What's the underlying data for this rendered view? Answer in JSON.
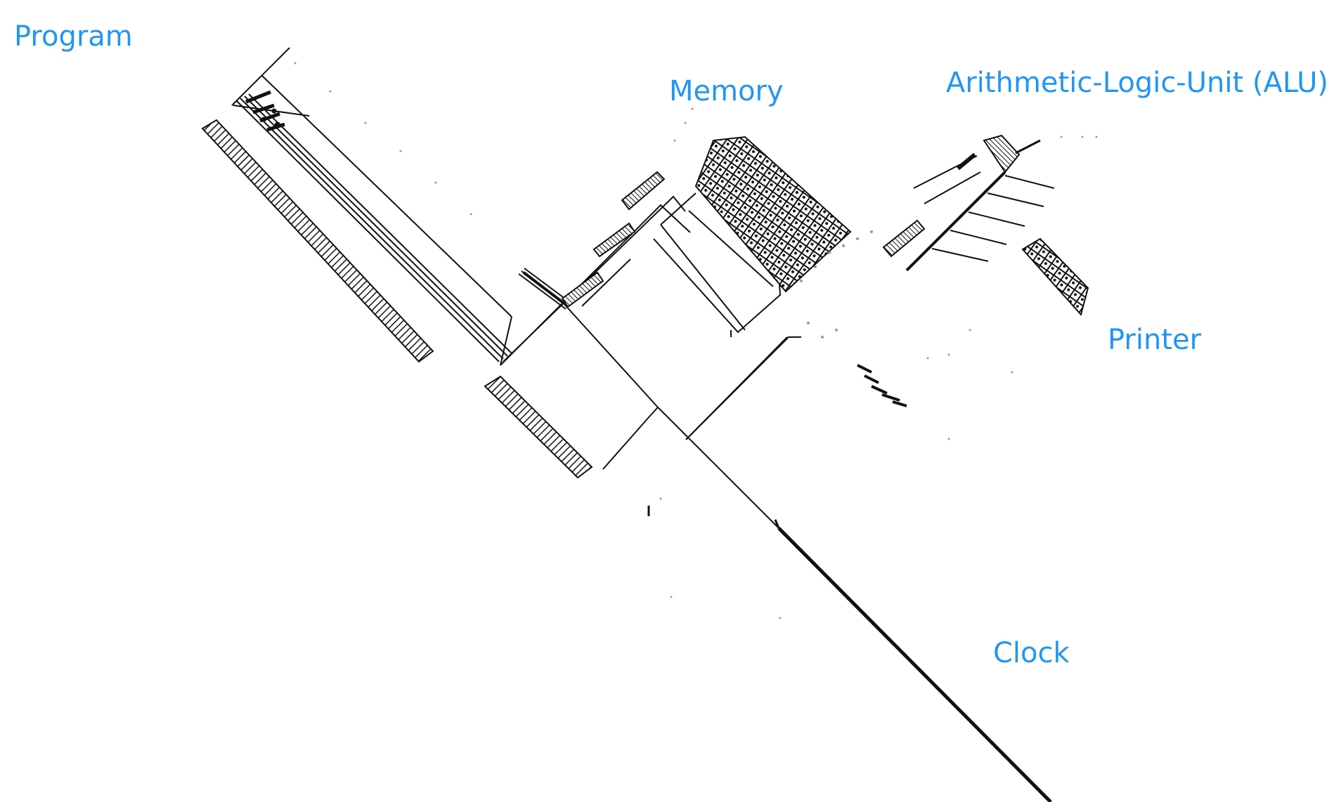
{
  "labels": {
    "program": "Program",
    "memory": "Memory",
    "alu": "Arithmetic-Logic-Unit (ALU)",
    "printer": "Printer",
    "clock": "Clock"
  },
  "colors": {
    "label": "#2196F3",
    "circuit": "#111111",
    "background": "#ffffff"
  }
}
